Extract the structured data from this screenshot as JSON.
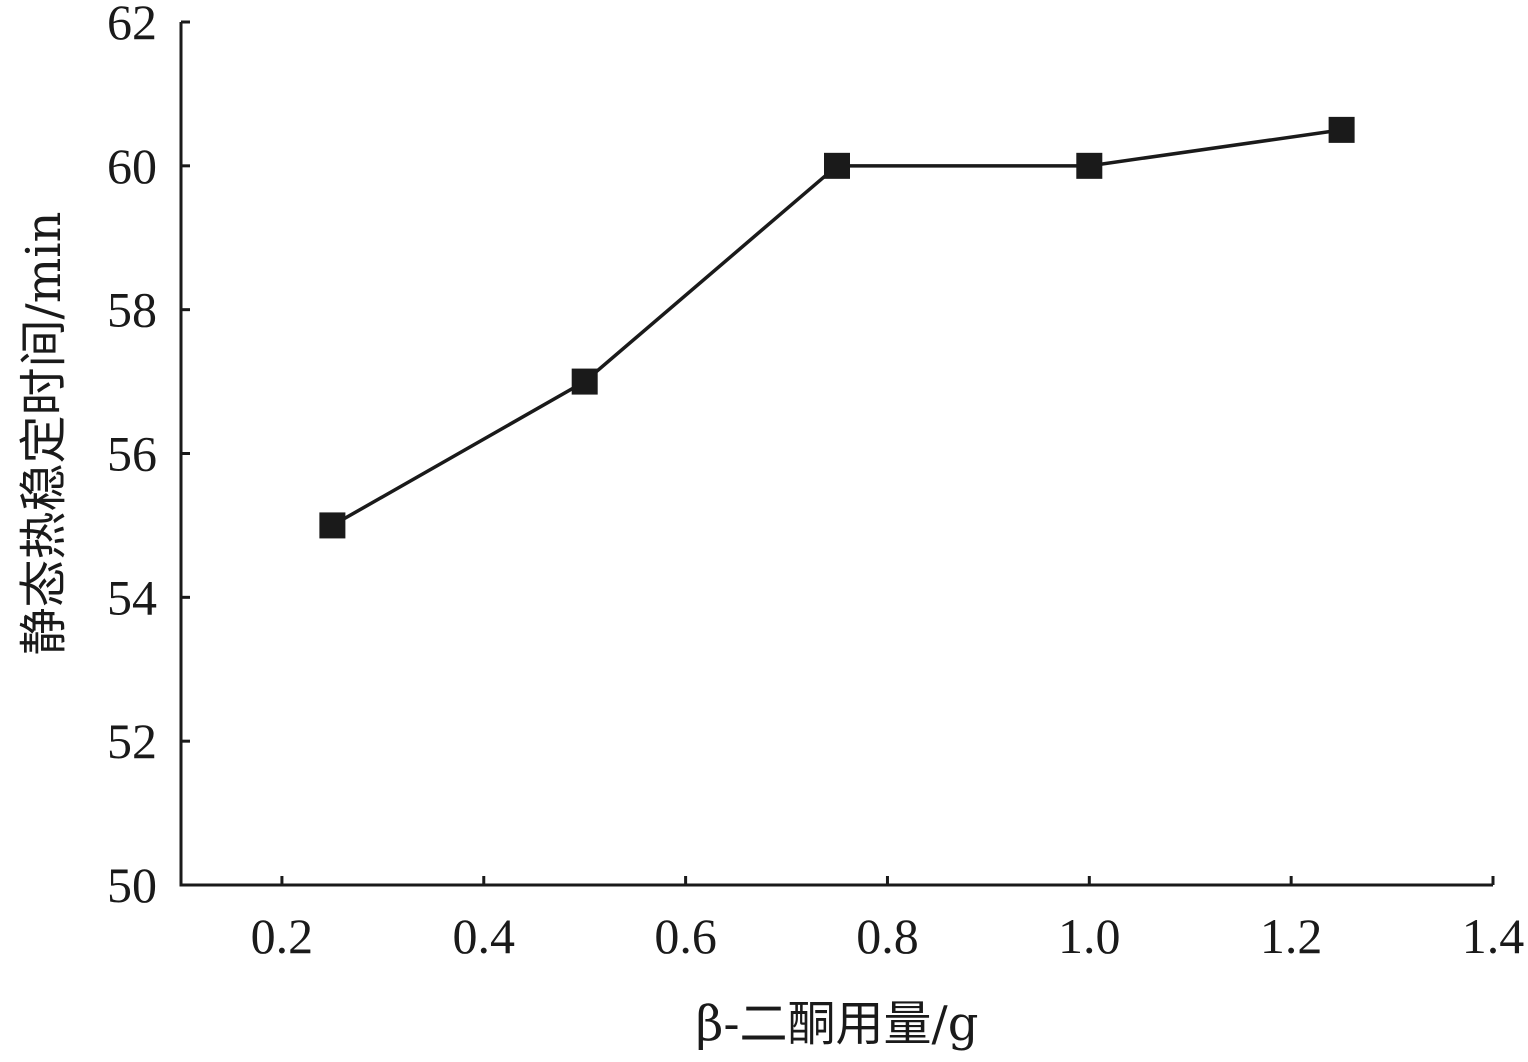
{
  "chart_data": {
    "type": "line",
    "xlabel": "β-二酮用量/g",
    "ylabel": "静态热稳定时间/min",
    "xlim": [
      0.1,
      1.4
    ],
    "ylim": [
      50,
      62
    ],
    "xticks": [
      0.2,
      0.4,
      0.6,
      0.8,
      1.0,
      1.2,
      1.4
    ],
    "xtick_labels": [
      "0.2",
      "0.4",
      "0.6",
      "0.8",
      "1.0",
      "1.2",
      "1.4"
    ],
    "yticks": [
      50,
      52,
      54,
      56,
      58,
      60,
      62
    ],
    "ytick_labels": [
      "50",
      "52",
      "54",
      "56",
      "58",
      "60",
      "62"
    ],
    "grid": false,
    "marker": "square",
    "color": "#1a1a1a",
    "series": [
      {
        "x": [
          0.25,
          0.5,
          0.75,
          1.0,
          1.25
        ],
        "y": [
          55,
          57,
          60,
          60,
          60.5
        ]
      }
    ]
  }
}
